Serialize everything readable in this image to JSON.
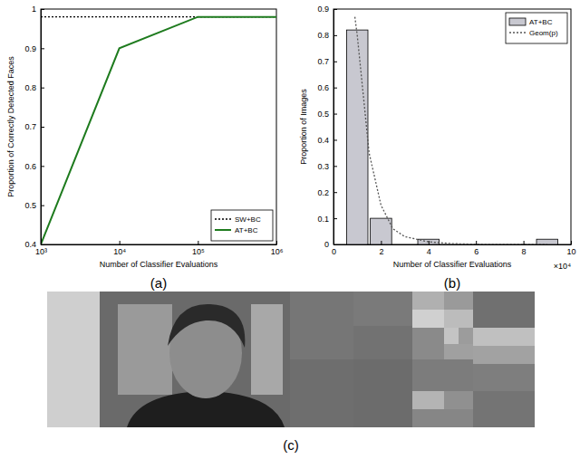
{
  "chart_data": [
    {
      "type": "line",
      "title": "(a)",
      "x_label": "Number of Classifier Evaluations",
      "y_label": "Proportion of Correctly Detected Faces",
      "x": [
        1000,
        10000,
        100000,
        1000000
      ],
      "series": [
        {
          "name": "SW+BC",
          "color": "#000000",
          "line_style": "dotted",
          "values": [
            0.98,
            0.98,
            0.98,
            0.98
          ]
        },
        {
          "name": "AT+BC",
          "color": "#1e7b1e",
          "line_style": "solid",
          "values": [
            0.4,
            0.9,
            0.98,
            0.98
          ]
        }
      ],
      "log": "x",
      "xlim": [
        1000,
        1000000
      ],
      "xticks": [
        {
          "value": 1000,
          "label": "10³"
        },
        {
          "value": 10000,
          "label": "10⁴"
        },
        {
          "value": 100000,
          "label": "10⁵"
        },
        {
          "value": 1000000,
          "label": "10⁶"
        }
      ],
      "ylim": [
        0.4,
        1
      ],
      "yticks": [
        0.4,
        0.5,
        0.6,
        0.7,
        0.8,
        0.9,
        1
      ],
      "legend": "lower right",
      "grid": false
    },
    {
      "type": "bar",
      "title": "(b)",
      "x_label": "Number of Classifier Evaluations",
      "y_label": "Proportion of Images",
      "annotations": [
        "×10⁴"
      ],
      "series": [
        {
          "name": "AT+BC",
          "type": "bar",
          "color": "#c8c8d0",
          "x": [
            1,
            2,
            3,
            4,
            5,
            6,
            7,
            8,
            9
          ],
          "values": [
            0.82,
            0.1,
            0,
            0.02,
            0,
            0,
            0,
            0,
            0.02
          ]
        },
        {
          "name": "Geom(p)",
          "type": "line",
          "color": "#555555",
          "line_style": "dotted",
          "x": [
            0.9,
            1,
            1.5,
            2,
            2.5,
            3,
            4,
            5,
            6,
            7,
            8,
            9
          ],
          "values": [
            0.87,
            0.8,
            0.35,
            0.15,
            0.06,
            0.03,
            0.01,
            0.003,
            0.001,
            0,
            0,
            0
          ]
        }
      ],
      "xlim": [
        0,
        10
      ],
      "xticks": [
        0,
        2,
        4,
        6,
        8,
        10
      ],
      "ylim": [
        0,
        0.9
      ],
      "yticks": [
        0,
        0.1,
        0.2,
        0.3,
        0.4,
        0.5,
        0.6,
        0.7,
        0.8,
        0.9
      ],
      "legend": "upper right",
      "grid": false
    }
  ],
  "image_panel": {
    "caption": "(c)"
  }
}
